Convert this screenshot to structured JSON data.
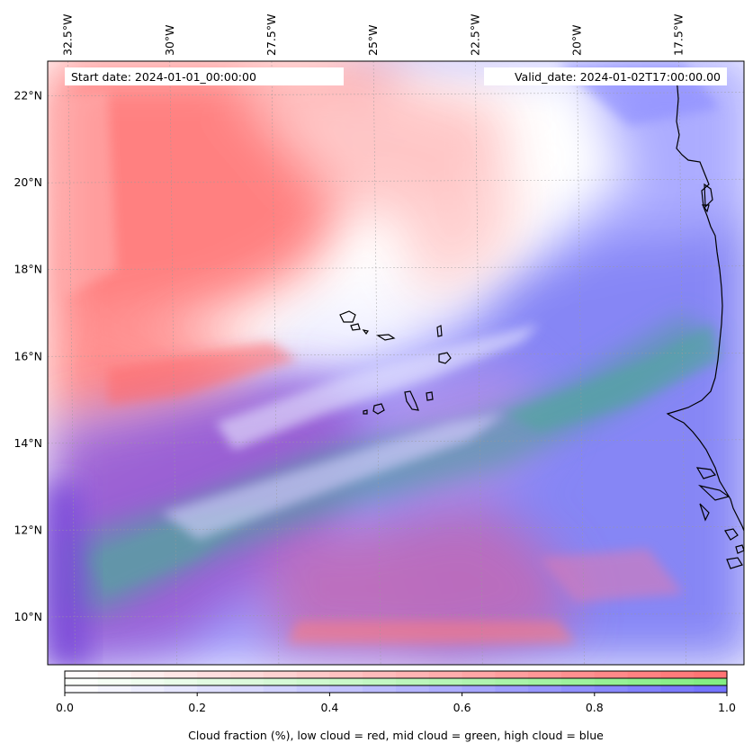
{
  "map": {
    "annotation_start": "Start date: 2024-01-01_00:00:00",
    "annotation_valid": "Valid_date: 2024-01-02T17:00:00.00",
    "extent": {
      "lon_min": -33.0,
      "lon_max": -15.9,
      "lat_min": 8.9,
      "lat_max": 22.8
    },
    "lon_ticks": [
      {
        "value": -32.5,
        "label": "32.5°W"
      },
      {
        "value": -30.0,
        "label": "30°W"
      },
      {
        "value": -27.5,
        "label": "27.5°W"
      },
      {
        "value": -25.0,
        "label": "25°W"
      },
      {
        "value": -22.5,
        "label": "22.5°W"
      },
      {
        "value": -20.0,
        "label": "20°W"
      },
      {
        "value": -17.5,
        "label": "17.5°W"
      }
    ],
    "lat_ticks": [
      {
        "value": 22,
        "label": "22°N"
      },
      {
        "value": 20,
        "label": "20°N"
      },
      {
        "value": 18,
        "label": "18°N"
      },
      {
        "value": 16,
        "label": "16°N"
      },
      {
        "value": 14,
        "label": "14°N"
      },
      {
        "value": 12,
        "label": "12°N"
      },
      {
        "value": 10,
        "label": "10°N"
      }
    ],
    "gridlines": true,
    "colors": {
      "low_cloud": "#ff6b6b",
      "mid_cloud": "#7be07b",
      "high_cloud": "#6b6bff",
      "coastline": "#000000"
    }
  },
  "colorbar": {
    "ticks": [
      "0.0",
      "0.2",
      "0.4",
      "0.6",
      "0.8",
      "1.0"
    ],
    "label": "Cloud fraction (%), low cloud = red, mid cloud = green, high cloud = blue",
    "segments": 20,
    "colors": {
      "red": "#ff7070",
      "green": "#80ee80",
      "blue": "#7070ff"
    }
  }
}
